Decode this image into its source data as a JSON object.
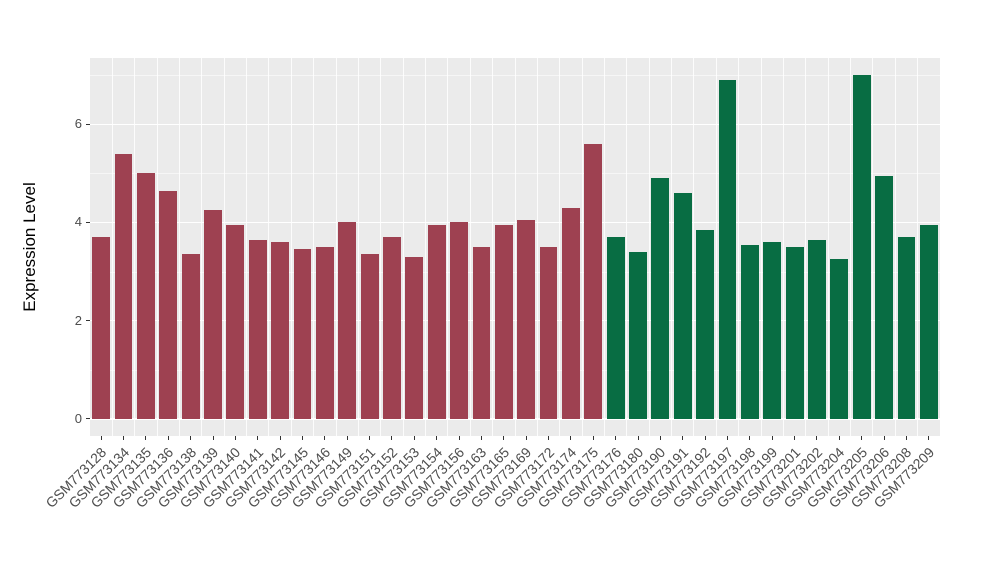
{
  "chart_data": {
    "type": "bar",
    "title": "",
    "xlabel": "",
    "ylabel": "Expression Level",
    "ylim": [
      0,
      7
    ],
    "yticks": [
      0,
      2,
      4,
      6
    ],
    "yticks_minor": [
      1,
      3,
      5,
      7
    ],
    "grid": true,
    "legend": "none",
    "categories": [
      "GSM773128",
      "GSM773134",
      "GSM773135",
      "GSM773136",
      "GSM773138",
      "GSM773139",
      "GSM773140",
      "GSM773141",
      "GSM773142",
      "GSM773145",
      "GSM773146",
      "GSM773149",
      "GSM773151",
      "GSM773152",
      "GSM773153",
      "GSM773154",
      "GSM773156",
      "GSM773163",
      "GSM773165",
      "GSM773169",
      "GSM773172",
      "GSM773174",
      "GSM773175",
      "GSM773176",
      "GSM773180",
      "GSM773190",
      "GSM773191",
      "GSM773192",
      "GSM773197",
      "GSM773198",
      "GSM773199",
      "GSM773201",
      "GSM773202",
      "GSM773204",
      "GSM773205",
      "GSM773206",
      "GSM773208",
      "GSM773209"
    ],
    "values": [
      3.7,
      5.4,
      5.0,
      4.65,
      3.35,
      4.25,
      3.95,
      3.65,
      3.6,
      3.45,
      3.5,
      4.0,
      3.35,
      3.7,
      3.3,
      3.95,
      4.0,
      3.5,
      3.95,
      4.05,
      3.5,
      4.3,
      5.6,
      3.7,
      3.4,
      4.9,
      4.6,
      3.85,
      6.9,
      3.55,
      3.6,
      3.5,
      3.65,
      3.25,
      7.0,
      4.95,
      3.7,
      3.95
    ],
    "groups": [
      "group1",
      "group1",
      "group1",
      "group1",
      "group1",
      "group1",
      "group1",
      "group1",
      "group1",
      "group1",
      "group1",
      "group1",
      "group1",
      "group1",
      "group1",
      "group1",
      "group1",
      "group1",
      "group1",
      "group1",
      "group1",
      "group1",
      "group1",
      "group2",
      "group2",
      "group2",
      "group2",
      "group2",
      "group2",
      "group2",
      "group2",
      "group2",
      "group2",
      "group2",
      "group2",
      "group2",
      "group2",
      "group2"
    ]
  },
  "style": {
    "panel_bg": "#ebebeb",
    "grid_color": "#ffffff",
    "tick_label_color": "#4d4d4d",
    "axis_title_color": "#000000",
    "group_colors": {
      "group1": "#9e4151",
      "group2": "#086d43"
    }
  }
}
